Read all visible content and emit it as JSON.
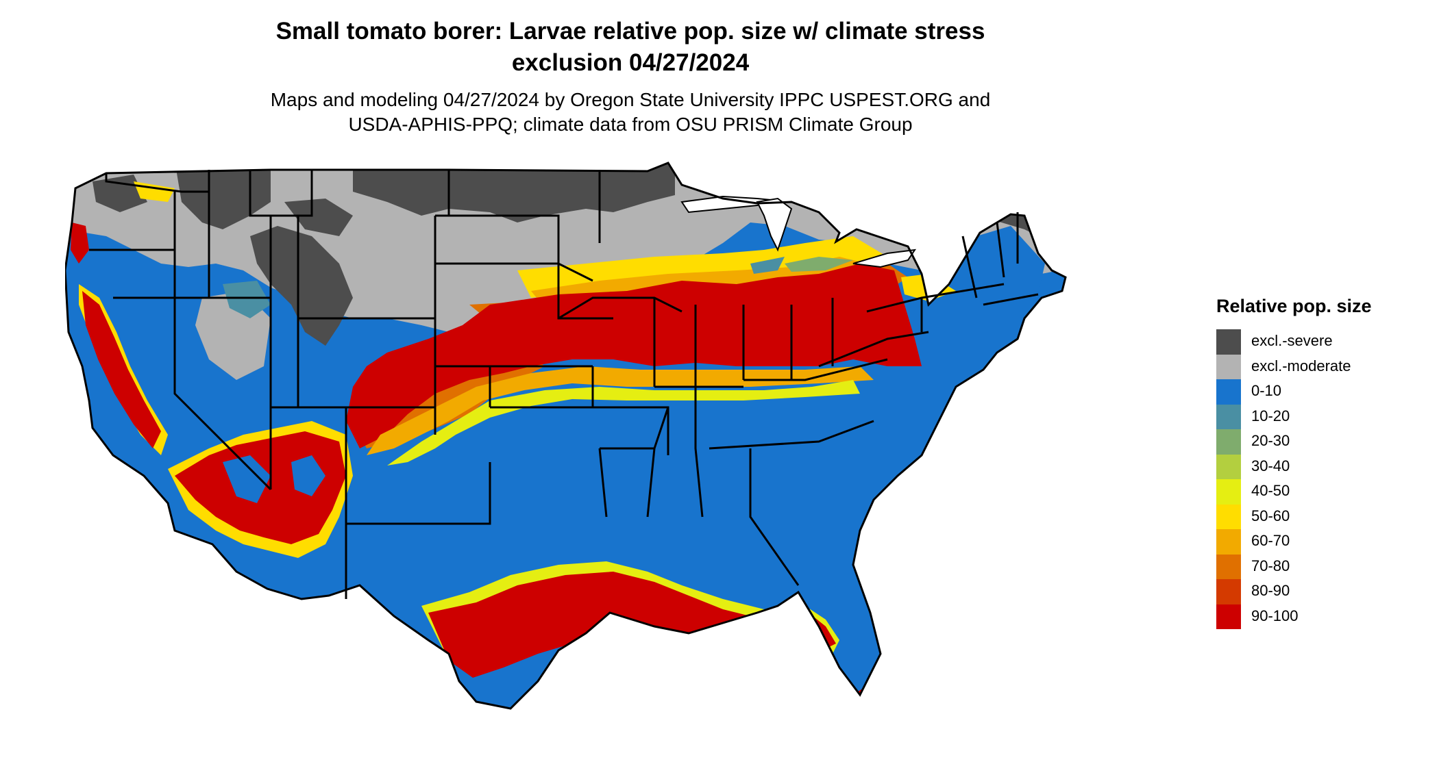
{
  "title_line1": "Small tomato borer: Larvae relative pop. size w/ climate stress",
  "title_line2": "exclusion 04/27/2024",
  "subtitle_line1": "Maps and modeling 04/27/2024 by Oregon State University IPPC USPEST.ORG and",
  "subtitle_line2": "USDA-APHIS-PPQ; climate data from OSU PRISM Climate Group",
  "legend": {
    "title": "Relative pop. size",
    "items": [
      {
        "label": "excl.-severe",
        "color": "#4d4d4d"
      },
      {
        "label": "excl.-moderate",
        "color": "#b3b3b3"
      },
      {
        "label": "0-10",
        "color": "#1874cd"
      },
      {
        "label": "10-20",
        "color": "#4a8fa3"
      },
      {
        "label": "20-30",
        "color": "#7fac6d"
      },
      {
        "label": "30-40",
        "color": "#b3cf3f"
      },
      {
        "label": "40-50",
        "color": "#e5ee12"
      },
      {
        "label": "50-60",
        "color": "#ffdd00"
      },
      {
        "label": "60-70",
        "color": "#f2aa00"
      },
      {
        "label": "70-80",
        "color": "#e07000"
      },
      {
        "label": "80-90",
        "color": "#d43a00"
      },
      {
        "label": "90-100",
        "color": "#cd0000"
      }
    ]
  }
}
